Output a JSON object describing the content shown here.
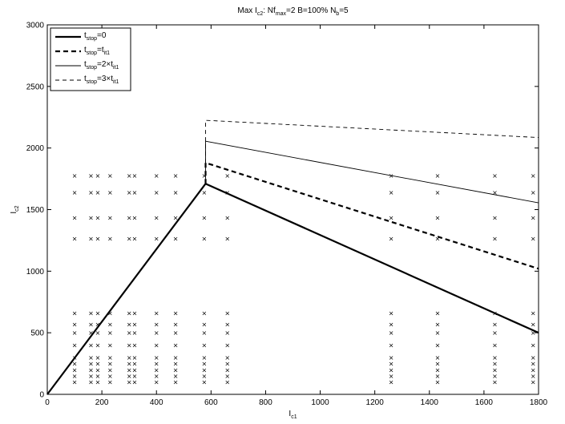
{
  "chart_data": {
    "type": "line",
    "title": {
      "main": "Max I",
      "sub1": "c2",
      "mid1": ": Nf",
      "sub2": "max",
      "mid2": "=2 B=100% N",
      "sub3": "b",
      "end": "=5"
    },
    "xlabel": {
      "main": "I",
      "sub": "c1"
    },
    "ylabel": {
      "main": "I",
      "sub": "c2"
    },
    "xlim": [
      0,
      1800
    ],
    "ylim": [
      0,
      3000
    ],
    "xticks": [
      0,
      200,
      400,
      600,
      800,
      1000,
      1200,
      1400,
      1600,
      1800
    ],
    "yticks": [
      0,
      500,
      1000,
      1500,
      2000,
      2500,
      3000
    ],
    "grid": false,
    "legend_position": "top-left",
    "series": [
      {
        "name": {
          "main": "t",
          "sub": "stop",
          "rest": "=0"
        },
        "style": "solid-thick",
        "x": [
          0,
          580,
          580,
          1800
        ],
        "y": [
          0,
          1710,
          1710,
          500
        ]
      },
      {
        "name": {
          "main": "t",
          "sub": "stop",
          "rest": "=t",
          "sub2": "it1"
        },
        "style": "dashed-thick",
        "x": [
          580,
          580,
          1800
        ],
        "y": [
          1710,
          1880,
          1020
        ]
      },
      {
        "name": {
          "main": "t",
          "sub": "stop",
          "rest": "=2×t",
          "sub2": "it1"
        },
        "style": "solid-thin",
        "x": [
          580,
          580,
          1800
        ],
        "y": [
          1710,
          2055,
          1555
        ]
      },
      {
        "name": {
          "main": "t",
          "sub": "stop",
          "rest": "=3×t",
          "sub2": "it1"
        },
        "style": "dashed-thin",
        "x": [
          580,
          580,
          1800
        ],
        "y": [
          1880,
          2225,
          2085
        ]
      }
    ],
    "markers": {
      "symbol": "×",
      "columns_low": [
        100,
        160,
        185,
        230,
        300,
        320,
        400,
        470,
        575,
        660
      ],
      "columns_high": [
        1260,
        1430,
        1640,
        1780
      ],
      "y_upper_low": [
        1265,
        1435,
        1640,
        1775
      ],
      "y_upper_high": [
        1265,
        1435,
        1640,
        1775
      ],
      "y_lower_low": [
        100,
        150,
        200,
        250,
        300,
        400,
        500,
        570,
        660
      ],
      "y_lower_high": [
        100,
        150,
        200,
        250,
        300,
        400,
        500,
        570,
        660
      ]
    }
  }
}
